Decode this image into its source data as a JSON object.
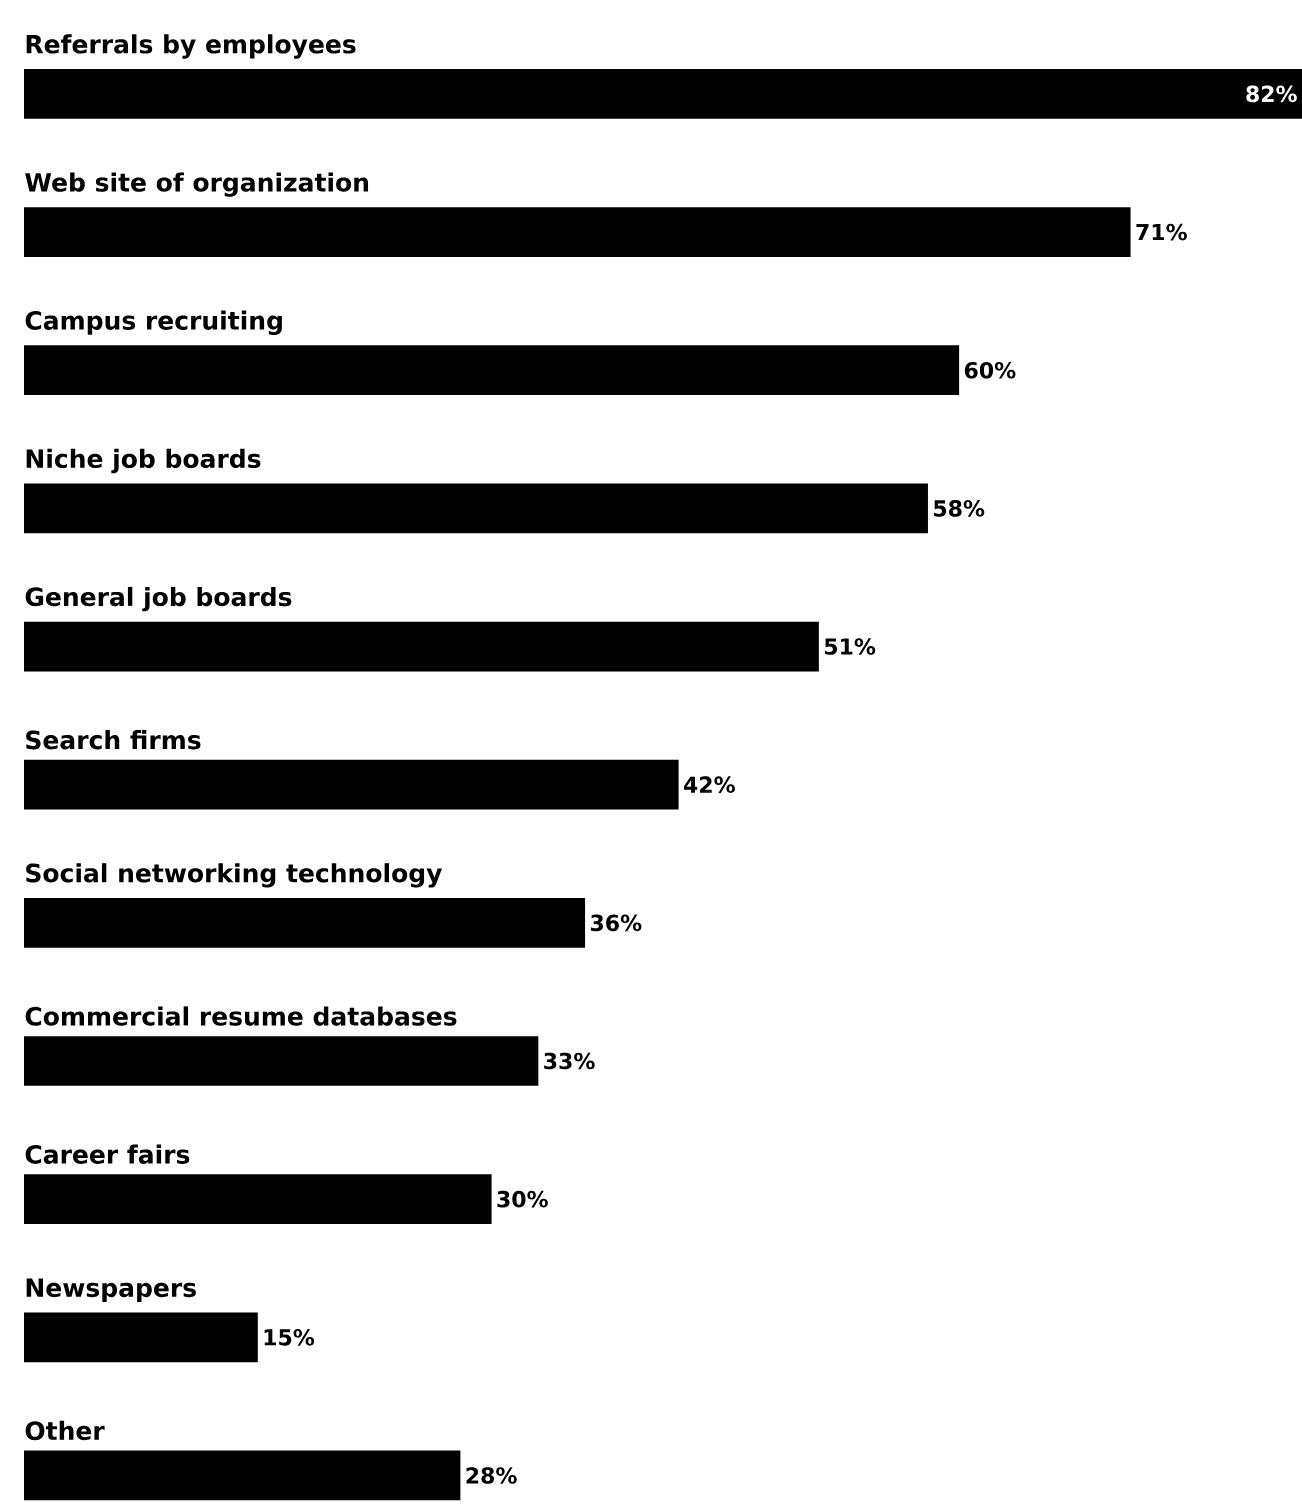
{
  "chart_data": {
    "type": "bar",
    "orientation": "horizontal",
    "categories": [
      "Referrals by employees",
      "Web site of organization",
      "Campus recruiting",
      "Niche job boards",
      "General job boards",
      "Search firms",
      "Social networking technology",
      "Commercial resume databases",
      "Career fairs",
      "Newspapers",
      "Other"
    ],
    "values": [
      82,
      71,
      60,
      58,
      51,
      42,
      36,
      33,
      30,
      15,
      28
    ],
    "value_labels": [
      "82%",
      "71%",
      "60%",
      "58%",
      "51%",
      "42%",
      "36%",
      "33%",
      "30%",
      "15%",
      "28%"
    ],
    "color": "#000000"
  }
}
